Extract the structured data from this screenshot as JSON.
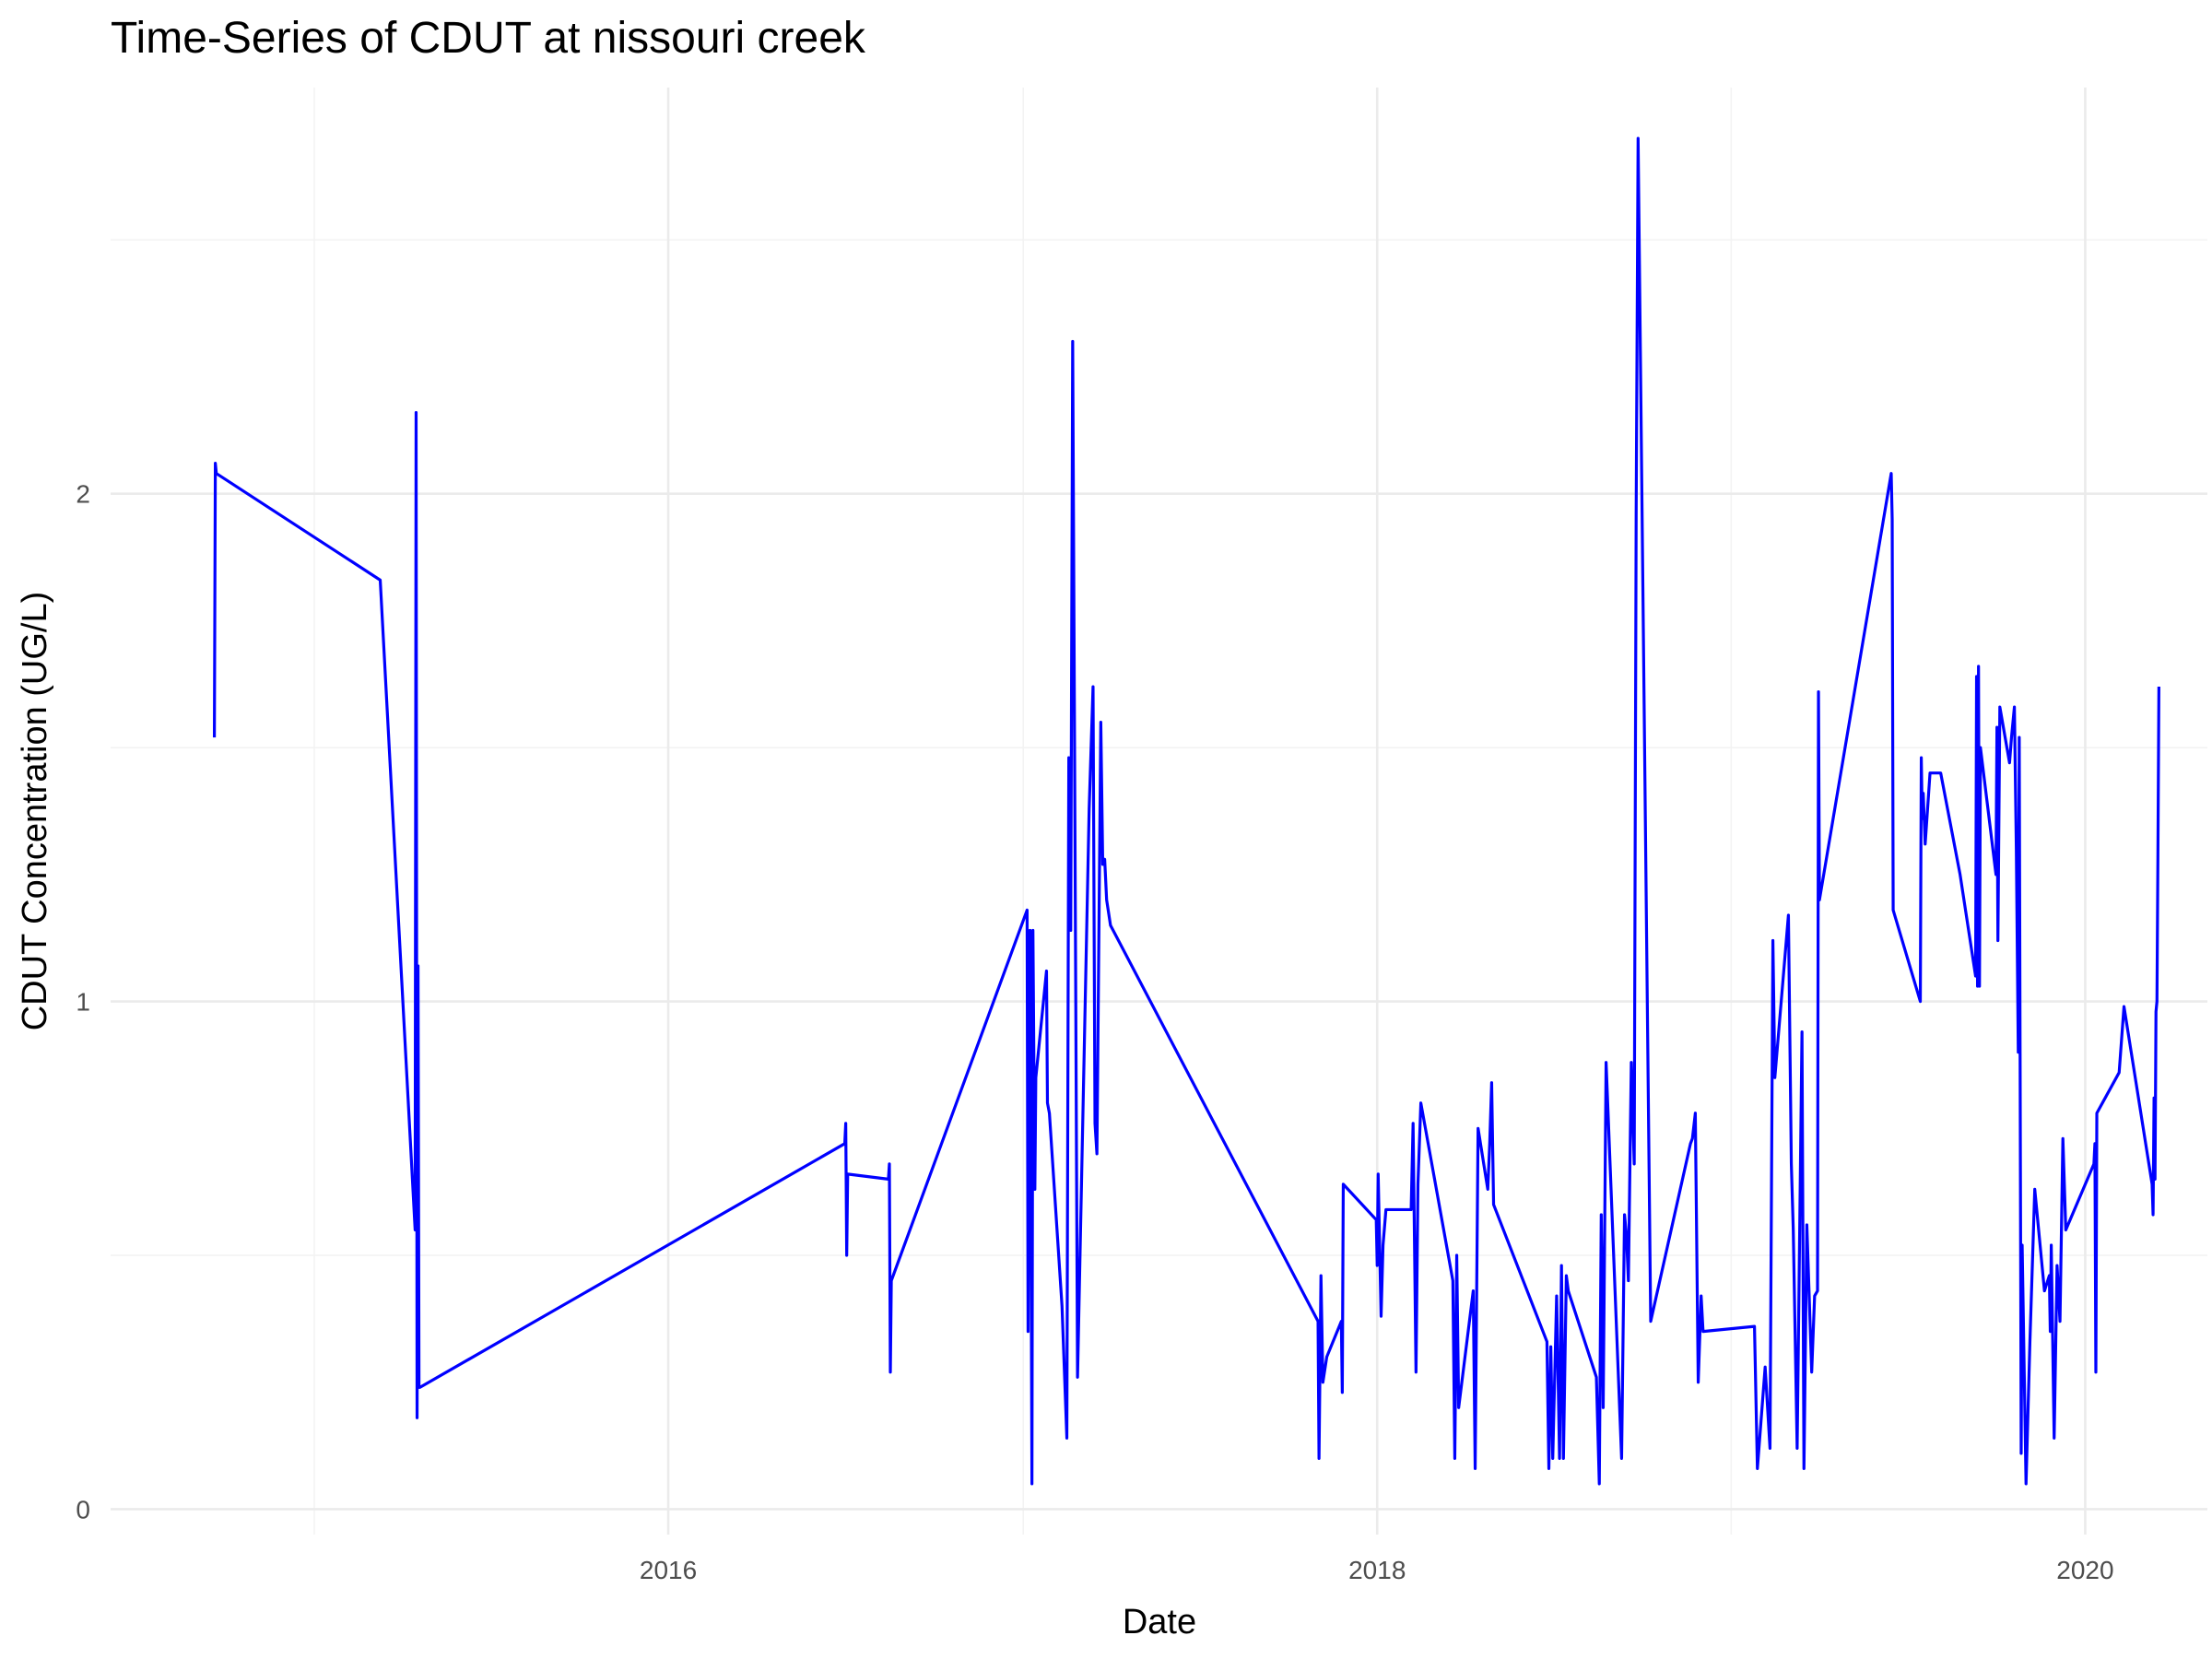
{
  "chart_data": {
    "type": "line",
    "title": "Time-Series of CDUT at nissouri creek",
    "xlabel": "Date",
    "ylabel": "CDUT Concentration (UG/L)",
    "x_ticks": [
      "2016",
      "2018",
      "2020"
    ],
    "y_ticks": [
      "0",
      "1",
      "2"
    ],
    "xlim": [
      "2014-06-05",
      "2020-05-06"
    ],
    "ylim": [
      -0.05,
      2.8
    ],
    "grid": true,
    "line_color": "#0000ff",
    "series": [
      {
        "x": [
          "2014-09-20",
          "2014-09-21",
          "2014-09-22",
          "2015-03-10",
          "2015-04-15",
          "2015-04-16",
          "2015-04-17",
          "2015-04-18",
          "2015-04-19",
          "2015-04-20",
          "2016-07-01",
          "2016-07-02",
          "2016-07-03",
          "2016-07-04",
          "2016-08-15",
          "2016-08-16",
          "2016-08-17",
          "2016-08-18",
          "2017-01-05",
          "2017-01-06",
          "2017-01-07",
          "2017-01-08",
          "2017-01-10",
          "2017-01-11",
          "2017-01-13",
          "2017-01-14",
          "2017-01-25",
          "2017-01-26",
          "2017-01-28",
          "2017-02-10",
          "2017-02-15",
          "2017-02-17",
          "2017-02-19",
          "2017-02-21",
          "2017-02-26",
          "2017-03-10",
          "2017-03-14",
          "2017-03-16",
          "2017-03-18",
          "2017-03-22",
          "2017-03-24",
          "2017-03-26",
          "2017-03-28",
          "2017-04-01",
          "2017-11-01",
          "2017-11-02",
          "2017-11-04",
          "2017-11-06",
          "2017-11-10",
          "2017-11-25",
          "2017-11-26",
          "2017-11-27",
          "2017-12-31",
          "2018-01-01",
          "2018-01-02",
          "2018-01-05",
          "2018-01-07",
          "2018-01-10",
          "2018-02-05",
          "2018-02-07",
          "2018-02-10",
          "2018-02-12",
          "2018-02-15",
          "2018-03-20",
          "2018-03-22",
          "2018-03-24",
          "2018-03-26",
          "2018-04-10",
          "2018-04-12",
          "2018-04-15",
          "2018-04-25",
          "2018-04-27",
          "2018-04-29",
          "2018-05-01",
          "2018-06-25",
          "2018-06-27",
          "2018-06-29",
          "2018-07-01",
          "2018-07-05",
          "2018-07-08",
          "2018-07-10",
          "2018-07-12",
          "2018-07-15",
          "2018-07-17",
          "2018-08-15",
          "2018-08-18",
          "2018-08-20",
          "2018-08-22",
          "2018-08-25",
          "2018-09-10",
          "2018-09-13",
          "2018-09-15",
          "2018-09-17",
          "2018-09-20",
          "2018-09-23",
          "2018-09-25",
          "2018-09-27",
          "2018-10-10",
          "2018-11-20",
          "2018-11-22",
          "2018-11-25",
          "2018-11-28",
          "2018-12-01",
          "2018-12-03",
          "2019-01-25",
          "2019-01-28",
          "2019-02-05",
          "2019-02-10",
          "2019-02-13",
          "2019-02-15",
          "2019-03-01",
          "2019-03-04",
          "2019-03-06",
          "2019-03-10",
          "2019-03-15",
          "2019-03-17",
          "2019-03-20",
          "2019-03-25",
          "2019-03-28",
          "2019-03-31",
          "2019-04-01",
          "2019-04-02",
          "2019-06-15",
          "2019-06-16",
          "2019-06-17",
          "2019-07-15",
          "2019-07-16",
          "2019-07-17",
          "2019-07-18",
          "2019-07-20",
          "2019-07-25",
          "2019-08-05",
          "2019-08-25",
          "2019-09-10",
          "2019-09-11",
          "2019-09-12",
          "2019-09-13",
          "2019-09-14",
          "2019-09-15",
          "2019-10-01",
          "2019-10-02",
          "2019-10-03",
          "2019-10-05",
          "2019-10-15",
          "2019-10-17",
          "2019-10-20",
          "2019-10-22",
          "2019-10-24",
          "2019-10-25",
          "2019-10-27",
          "2019-10-28",
          "2019-11-01",
          "2019-11-05",
          "2019-11-10",
          "2019-11-20",
          "2019-11-25",
          "2019-11-26",
          "2019-11-27",
          "2019-11-30",
          "2019-12-03",
          "2019-12-06",
          "2019-12-09",
          "2019-12-12",
          "2020-01-10",
          "2020-01-11",
          "2020-01-12",
          "2020-01-13",
          "2020-02-05",
          "2020-02-10",
          "2020-03-10",
          "2020-03-11",
          "2020-03-12",
          "2020-03-13",
          "2020-03-14",
          "2020-03-15",
          "2020-03-16",
          "2020-03-17"
        ],
        "y": [
          1.52,
          2.06,
          2.04,
          1.83,
          0.55,
          2.16,
          0.18,
          1.07,
          0.24,
          0.24,
          0.72,
          0.76,
          0.5,
          0.66,
          0.65,
          0.68,
          0.27,
          0.45,
          1.18,
          0.35,
          0.98,
          1.14,
          0.05,
          1.14,
          0.63,
          0.85,
          1.06,
          0.8,
          0.78,
          0.4,
          0.14,
          1.48,
          1.14,
          2.3,
          0.26,
          1.38,
          1.62,
          0.76,
          0.7,
          1.55,
          1.27,
          1.28,
          1.2,
          1.15,
          0.37,
          0.1,
          0.46,
          0.25,
          0.3,
          0.37,
          0.23,
          0.64,
          0.57,
          0.48,
          0.66,
          0.38,
          0.52,
          0.59,
          0.59,
          0.76,
          0.27,
          0.64,
          0.8,
          0.45,
          0.1,
          0.5,
          0.2,
          0.43,
          0.08,
          0.75,
          0.63,
          0.72,
          0.84,
          0.6,
          0.33,
          0.08,
          0.32,
          0.1,
          0.42,
          0.1,
          0.48,
          0.1,
          0.46,
          0.43,
          0.26,
          0.05,
          0.58,
          0.2,
          0.88,
          0.1,
          0.58,
          0.54,
          0.45,
          0.88,
          0.68,
          1.96,
          2.7,
          0.37,
          0.72,
          0.73,
          0.78,
          0.25,
          0.42,
          0.35,
          0.36,
          0.08,
          0.28,
          0.12,
          1.12,
          0.85,
          1.17,
          0.68,
          0.55,
          0.12,
          0.94,
          0.08,
          0.56,
          0.27,
          0.42,
          0.43,
          1.61,
          1.2,
          2.04,
          1.95,
          1.18,
          1.0,
          1.48,
          1.36,
          1.41,
          1.31,
          1.45,
          1.45,
          1.25,
          1.05,
          1.64,
          1.03,
          1.66,
          1.03,
          1.5,
          1.25,
          1.54,
          1.12,
          1.58,
          1.47,
          1.52,
          1.58,
          1.3,
          0.9,
          1.52,
          0.11,
          0.52,
          0.05,
          0.33,
          0.63,
          0.43,
          0.46,
          0.35,
          0.52,
          0.14,
          0.48,
          0.37,
          0.73,
          0.55,
          0.68,
          0.72,
          0.27,
          0.78,
          0.86,
          0.99,
          0.64,
          0.58,
          0.81,
          0.65,
          0.98,
          1.0,
          1.29,
          1.62
        ]
      }
    ]
  }
}
